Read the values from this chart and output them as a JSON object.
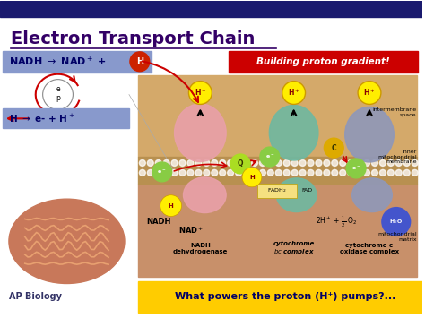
{
  "bg_color": "#ffffff",
  "title": "Electron Transport Chain",
  "title_color": "#330066",
  "title_fontsize": 14,
  "slide_bg": "#ffffff",
  "top_bar_color": "#1a1a6e",
  "nadh_box_color": "#8888bb",
  "red_box_text": "Building proton gradient!",
  "red_box_color": "#cc0000",
  "bottom_yellow_text": "What powers the proton (H⁺) pumps?...",
  "bottom_yellow_color": "#ffcc00",
  "intermembrane_color": "#d4a96a",
  "matrix_color": "#c8906a",
  "complex1_color": "#e8a0a8",
  "complex2_color": "#70b8a0",
  "complex3_color": "#9098b8",
  "hplus_color": "#ffee00",
  "electron_color": "#88cc44",
  "ap_biology_text": "AP Biology",
  "mito_color": "#c07050"
}
